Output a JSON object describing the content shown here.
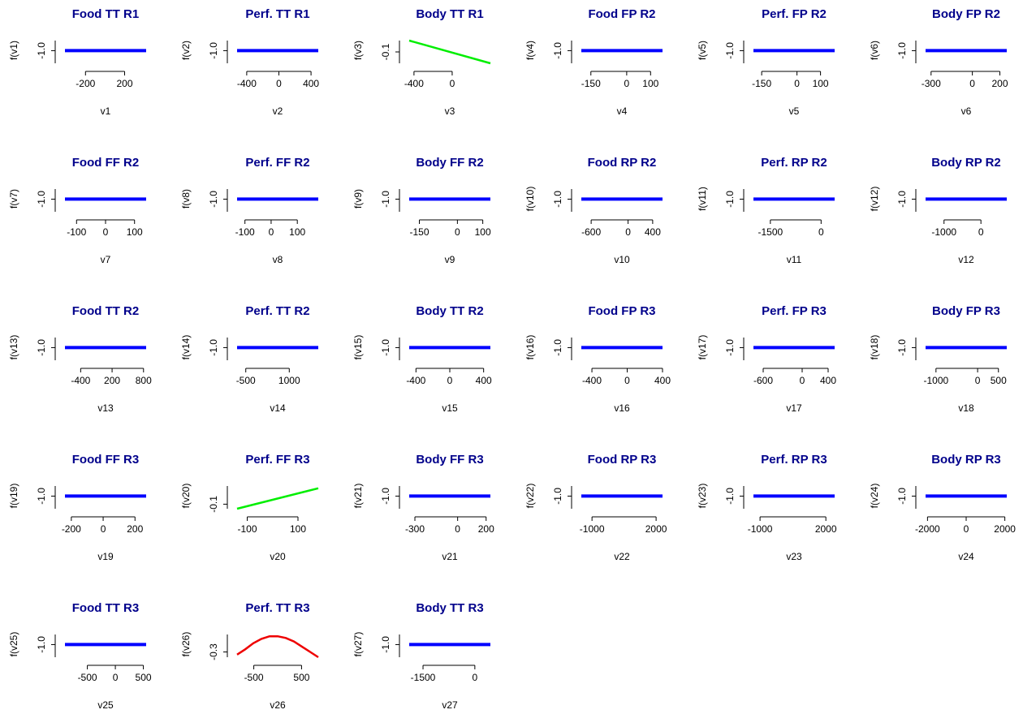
{
  "chart_data": [
    {
      "type": "line",
      "title": "Food TT R1",
      "xlabel": "v1",
      "ylabel": "f(v1)",
      "x": [
        -410,
        420
      ],
      "values": [
        -1,
        -1
      ],
      "color": "#0000ff",
      "xlim": [
        -410,
        420
      ],
      "xticks": [
        -200,
        200
      ],
      "ylim": [
        -1.5,
        -0.6
      ],
      "yticks": [
        {
          "value": -1,
          "label": "-1.0"
        }
      ]
    },
    {
      "type": "line",
      "title": "Perf. TT R1",
      "xlabel": "v2",
      "ylabel": "f(v2)",
      "x": [
        -520,
        490
      ],
      "values": [
        -1,
        -1
      ],
      "color": "#0000ff",
      "xlim": [
        -520,
        490
      ],
      "xticks": [
        -400,
        0,
        400
      ],
      "ylim": [
        -1.5,
        -0.6
      ],
      "yticks": [
        {
          "value": -1,
          "label": "-1.0"
        }
      ]
    },
    {
      "type": "line",
      "title": "Body TT R1",
      "xlabel": "v3",
      "ylabel": "f(v3)",
      "x": [
        -450,
        400
      ],
      "values": [
        -0.05,
        -0.15
      ],
      "color": "#00ee00",
      "xlim": [
        -450,
        400
      ],
      "xticks": [
        -400,
        0
      ],
      "ylim": [
        -0.15,
        -0.05
      ],
      "yticks": [
        {
          "value": -0.1,
          "label": "-0.1"
        }
      ]
    },
    {
      "type": "line",
      "title": "Food FP R2",
      "xlabel": "v4",
      "ylabel": "f(v4)",
      "x": [
        -190,
        150
      ],
      "values": [
        -1,
        -1
      ],
      "color": "#0000ff",
      "xlim": [
        -190,
        150
      ],
      "xticks": [
        -150,
        0,
        100
      ],
      "ylim": [
        -1.5,
        -0.6
      ],
      "yticks": [
        {
          "value": -1,
          "label": "-1.0"
        }
      ]
    },
    {
      "type": "line",
      "title": "Perf. FP R2",
      "xlabel": "v5",
      "ylabel": "f(v5)",
      "x": [
        -185,
        160
      ],
      "values": [
        -1,
        -1
      ],
      "color": "#0000ff",
      "xlim": [
        -185,
        160
      ],
      "xticks": [
        -150,
        0,
        100
      ],
      "ylim": [
        -1.5,
        -0.6
      ],
      "yticks": [
        {
          "value": -1,
          "label": "-1.0"
        }
      ]
    },
    {
      "type": "line",
      "title": "Body FP R2",
      "xlabel": "v6",
      "ylabel": "f(v6)",
      "x": [
        -340,
        250
      ],
      "values": [
        -1,
        -1
      ],
      "color": "#0000ff",
      "xlim": [
        -340,
        250
      ],
      "xticks": [
        -300,
        0,
        200
      ],
      "ylim": [
        -1.5,
        -0.6
      ],
      "yticks": [
        {
          "value": -1,
          "label": "-1.0"
        }
      ]
    },
    {
      "type": "line",
      "title": "Food FF R2",
      "xlabel": "v7",
      "ylabel": "f(v7)",
      "x": [
        -140,
        140
      ],
      "values": [
        -1,
        -1
      ],
      "color": "#0000ff",
      "xlim": [
        -140,
        140
      ],
      "xticks": [
        -100,
        0,
        100
      ],
      "ylim": [
        -1.5,
        -0.6
      ],
      "yticks": [
        {
          "value": -1,
          "label": "-1.0"
        }
      ]
    },
    {
      "type": "line",
      "title": "Perf. FF R2",
      "xlabel": "v8",
      "ylabel": "f(v8)",
      "x": [
        -130,
        180
      ],
      "values": [
        -1,
        -1
      ],
      "color": "#0000ff",
      "xlim": [
        -130,
        180
      ],
      "xticks": [
        -100,
        0,
        100
      ],
      "ylim": [
        -1.5,
        -0.6
      ],
      "yticks": [
        {
          "value": -1,
          "label": "-1.0"
        }
      ]
    },
    {
      "type": "line",
      "title": "Body FF R2",
      "xlabel": "v9",
      "ylabel": "f(v9)",
      "x": [
        -190,
        130
      ],
      "values": [
        -1,
        -1
      ],
      "color": "#0000ff",
      "xlim": [
        -190,
        130
      ],
      "xticks": [
        -150,
        0,
        100
      ],
      "ylim": [
        -1.5,
        -0.6
      ],
      "yticks": [
        {
          "value": -1,
          "label": "-1.0"
        }
      ]
    },
    {
      "type": "line",
      "title": "Food RP R2",
      "xlabel": "v10",
      "ylabel": "f(v10)",
      "x": [
        -760,
        560
      ],
      "values": [
        -1,
        -1
      ],
      "color": "#0000ff",
      "xlim": [
        -760,
        560
      ],
      "xticks": [
        -600,
        0,
        400
      ],
      "ylim": [
        -1.5,
        -0.6
      ],
      "yticks": [
        {
          "value": -1,
          "label": "-1.0"
        }
      ]
    },
    {
      "type": "line",
      "title": "Perf. RP R2",
      "xlabel": "v11",
      "ylabel": "f(v11)",
      "x": [
        -2000,
        400
      ],
      "values": [
        -1,
        -1
      ],
      "color": "#0000ff",
      "xlim": [
        -2000,
        400
      ],
      "xticks": [
        -1500,
        0
      ],
      "ylim": [
        -1.5,
        -0.6
      ],
      "yticks": [
        {
          "value": -1,
          "label": "-1.0"
        }
      ]
    },
    {
      "type": "line",
      "title": "Body RP R2",
      "xlabel": "v12",
      "ylabel": "f(v12)",
      "x": [
        -1500,
        700
      ],
      "values": [
        -1,
        -1
      ],
      "color": "#0000ff",
      "xlim": [
        -1500,
        700
      ],
      "xticks": [
        -1000,
        0
      ],
      "ylim": [
        -1.5,
        -0.6
      ],
      "yticks": [
        {
          "value": -1,
          "label": "-1.0"
        }
      ]
    },
    {
      "type": "line",
      "title": "Food TT R2",
      "xlabel": "v13",
      "ylabel": "f(v13)",
      "x": [
        -700,
        850
      ],
      "values": [
        -1,
        -1
      ],
      "color": "#0000ff",
      "xlim": [
        -700,
        850
      ],
      "xticks": [
        -400,
        200,
        800
      ],
      "ylim": [
        -1.5,
        -0.6
      ],
      "yticks": [
        {
          "value": -1,
          "label": "-1.0"
        }
      ]
    },
    {
      "type": "line",
      "title": "Perf. TT R2",
      "xlabel": "v14",
      "ylabel": "f(v14)",
      "x": [
        -800,
        2000
      ],
      "values": [
        -1,
        -1
      ],
      "color": "#0000ff",
      "xlim": [
        -800,
        2000
      ],
      "xticks": [
        -500,
        1000
      ],
      "ylim": [
        -1.5,
        -0.6
      ],
      "yticks": [
        {
          "value": -1,
          "label": "-1.0"
        }
      ]
    },
    {
      "type": "line",
      "title": "Body TT R2",
      "xlabel": "v15",
      "ylabel": "f(v15)",
      "x": [
        -480,
        480
      ],
      "values": [
        -1,
        -1
      ],
      "color": "#0000ff",
      "xlim": [
        -480,
        480
      ],
      "xticks": [
        -400,
        0,
        400
      ],
      "ylim": [
        -1.5,
        -0.6
      ],
      "yticks": [
        {
          "value": -1,
          "label": "-1.0"
        }
      ]
    },
    {
      "type": "line",
      "title": "Food FP R3",
      "xlabel": "v16",
      "ylabel": "f(v16)",
      "x": [
        -520,
        400
      ],
      "values": [
        -1,
        -1
      ],
      "color": "#0000ff",
      "xlim": [
        -520,
        400
      ],
      "xticks": [
        -400,
        0,
        400
      ],
      "ylim": [
        -1.5,
        -0.6
      ],
      "yticks": [
        {
          "value": -1,
          "label": "-1.0"
        }
      ]
    },
    {
      "type": "line",
      "title": "Perf. FP R3",
      "xlabel": "v17",
      "ylabel": "f(v17)",
      "x": [
        -750,
        500
      ],
      "values": [
        -1,
        -1
      ],
      "color": "#0000ff",
      "xlim": [
        -750,
        500
      ],
      "xticks": [
        -600,
        0,
        400
      ],
      "ylim": [
        -1.5,
        -0.6
      ],
      "yticks": [
        {
          "value": -1,
          "label": "-1.0"
        }
      ]
    },
    {
      "type": "line",
      "title": "Body FP R3",
      "xlabel": "v18",
      "ylabel": "f(v18)",
      "x": [
        -1250,
        700
      ],
      "values": [
        -1,
        -1
      ],
      "color": "#0000ff",
      "xlim": [
        -1250,
        700
      ],
      "xticks": [
        -1000,
        0,
        500
      ],
      "ylim": [
        -1.5,
        -0.6
      ],
      "yticks": [
        {
          "value": -1,
          "label": "-1.0"
        }
      ]
    },
    {
      "type": "line",
      "title": "Food FF R3",
      "xlabel": "v19",
      "ylabel": "f(v19)",
      "x": [
        -240,
        270
      ],
      "values": [
        -1,
        -1
      ],
      "color": "#0000ff",
      "xlim": [
        -240,
        270
      ],
      "xticks": [
        -200,
        0,
        200
      ],
      "ylim": [
        -1.5,
        -0.6
      ],
      "yticks": [
        {
          "value": -1,
          "label": "-1.0"
        }
      ]
    },
    {
      "type": "line",
      "title": "Perf. FF R3",
      "xlabel": "v20",
      "ylabel": "f(v20)",
      "x": [
        -140,
        180
      ],
      "values": [
        -0.12,
        -0.03
      ],
      "color": "#00ee00",
      "xlim": [
        -140,
        180
      ],
      "xticks": [
        -100,
        100
      ],
      "ylim": [
        -0.12,
        -0.02
      ],
      "yticks": [
        {
          "value": -0.1,
          "label": "-0.1"
        }
      ]
    },
    {
      "type": "line",
      "title": "Body FF R3",
      "xlabel": "v21",
      "ylabel": "f(v21)",
      "x": [
        -340,
        230
      ],
      "values": [
        -1,
        -1
      ],
      "color": "#0000ff",
      "xlim": [
        -340,
        230
      ],
      "xticks": [
        -300,
        0,
        200
      ],
      "ylim": [
        -1.5,
        -0.6
      ],
      "yticks": [
        {
          "value": -1,
          "label": "-1.0"
        }
      ]
    },
    {
      "type": "line",
      "title": "Food RP R3",
      "xlabel": "v22",
      "ylabel": "f(v22)",
      "x": [
        -1500,
        2300
      ],
      "values": [
        -1,
        -1
      ],
      "color": "#0000ff",
      "xlim": [
        -1500,
        2300
      ],
      "xticks": [
        -1000,
        2000
      ],
      "ylim": [
        -1.5,
        -0.6
      ],
      "yticks": [
        {
          "value": -1,
          "label": "-1.0"
        }
      ]
    },
    {
      "type": "line",
      "title": "Perf. RP R3",
      "xlabel": "v23",
      "ylabel": "f(v23)",
      "x": [
        -1300,
        2400
      ],
      "values": [
        -1,
        -1
      ],
      "color": "#0000ff",
      "xlim": [
        -1300,
        2400
      ],
      "xticks": [
        -1000,
        2000
      ],
      "ylim": [
        -1.5,
        -0.6
      ],
      "yticks": [
        {
          "value": -1,
          "label": "-1.0"
        }
      ]
    },
    {
      "type": "line",
      "title": "Body RP R3",
      "xlabel": "v24",
      "ylabel": "f(v24)",
      "x": [
        -2100,
        2100
      ],
      "values": [
        -1,
        -1
      ],
      "color": "#0000ff",
      "xlim": [
        -2100,
        2100
      ],
      "xticks": [
        -2000,
        0,
        2000
      ],
      "ylim": [
        -1.5,
        -0.6
      ],
      "yticks": [
        {
          "value": -1,
          "label": "-1.0"
        }
      ]
    },
    {
      "type": "line",
      "title": "Food TT R3",
      "xlabel": "v25",
      "ylabel": "f(v25)",
      "x": [
        -900,
        550
      ],
      "values": [
        -1,
        -1
      ],
      "color": "#0000ff",
      "xlim": [
        -900,
        550
      ],
      "xticks": [
        -500,
        0,
        500
      ],
      "ylim": [
        -1.5,
        -0.6
      ],
      "yticks": [
        {
          "value": -1,
          "label": "-1.0"
        }
      ]
    },
    {
      "type": "line",
      "title": "Perf. TT R3",
      "xlabel": "v26",
      "ylabel": "f(v26)",
      "x": [
        -850,
        -680,
        -510,
        -340,
        -170,
        0,
        170,
        340,
        510,
        680,
        850
      ],
      "values": [
        -0.33,
        -0.27,
        -0.2,
        -0.15,
        -0.12,
        -0.12,
        -0.14,
        -0.18,
        -0.24,
        -0.3,
        -0.36
      ],
      "color": "#ee0000",
      "xlim": [
        -850,
        850
      ],
      "xticks": [
        -500,
        500
      ],
      "ylim": [
        -0.36,
        -0.1
      ],
      "yticks": [
        {
          "value": -0.3,
          "label": "-0.3"
        }
      ]
    },
    {
      "type": "line",
      "title": "Body TT R3",
      "xlabel": "v27",
      "ylabel": "f(v27)",
      "x": [
        -1900,
        450
      ],
      "values": [
        -1,
        -1
      ],
      "color": "#0000ff",
      "xlim": [
        -1900,
        450
      ],
      "xticks": [
        -1500,
        0
      ],
      "ylim": [
        -1.5,
        -0.6
      ],
      "yticks": [
        {
          "value": -1,
          "label": "-1.0"
        }
      ]
    }
  ]
}
